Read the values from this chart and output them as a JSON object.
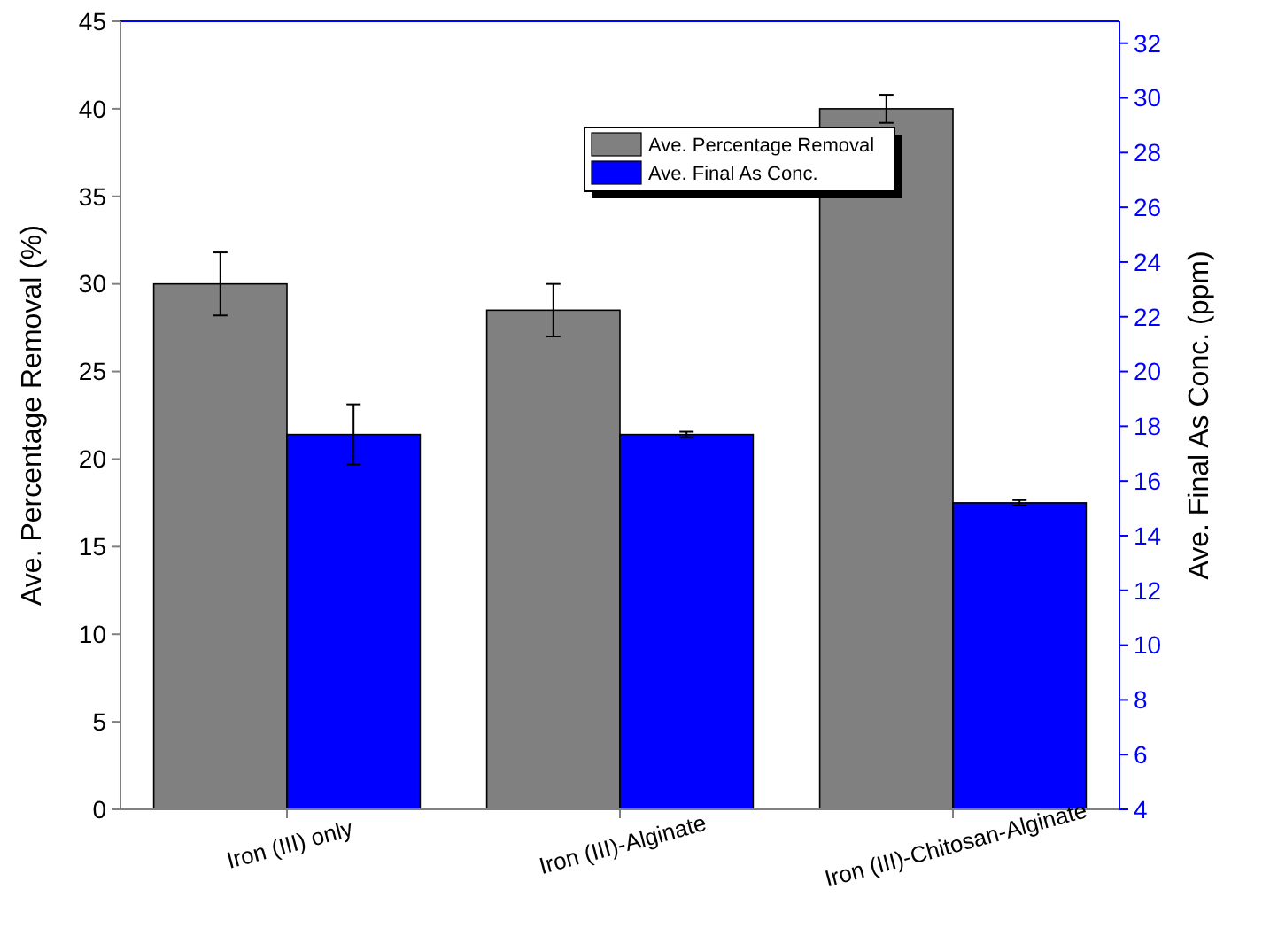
{
  "chart_data": {
    "type": "bar",
    "ylabel": "Ave. Percentage Removal (%)",
    "y2label": "Ave. Final As Conc. (ppm)",
    "categories": [
      "Iron (III) only",
      "Iron (III)-Alginate",
      "Iron (III)-Chitosan-Alginate"
    ],
    "series": [
      {
        "name": "Ave. Percentage Removal",
        "color": "#808080",
        "values": [
          30,
          28.5,
          40
        ],
        "errors": [
          1.8,
          1.5,
          0.8
        ]
      },
      {
        "name": "Ave. Final As Conc.",
        "color": "#0000ff",
        "values": [
          17.7,
          17.7,
          15.2
        ],
        "errors": [
          1.1,
          0.1,
          0.1
        ],
        "axis": "y2"
      }
    ],
    "ylim": [
      0,
      45
    ],
    "yticks": [
      0,
      5,
      10,
      15,
      20,
      25,
      30,
      35,
      40,
      45
    ],
    "y2lim": [
      4,
      32.8
    ],
    "y2ticks": [
      4,
      6,
      8,
      10,
      12,
      14,
      16,
      18,
      20,
      22,
      24,
      26,
      28,
      30,
      32
    ],
    "legend": "top",
    "grid": false
  }
}
